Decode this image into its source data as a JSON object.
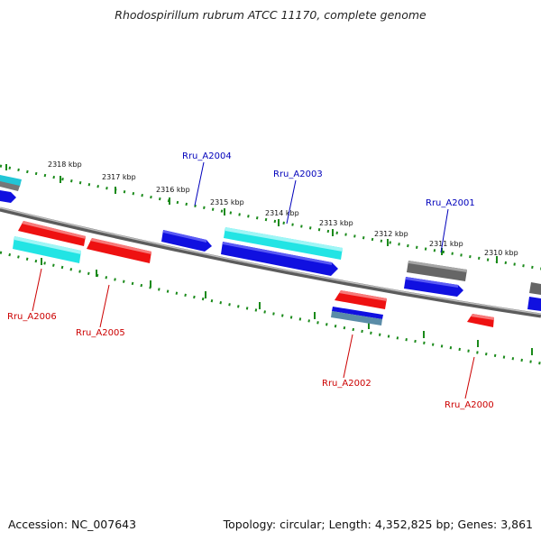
{
  "title": "Rhodospirillum rubrum ATCC 11170, complete genome",
  "footer": {
    "accession": "Accession: NC_007643",
    "summary": "Topology: circular; Length: 4,352,825 bp; Genes: 3,861"
  },
  "colors": {
    "plus_strand_label": "#0000bb",
    "minus_strand_label": "#cc0000",
    "blue": "#1010e0",
    "red": "#ee1111",
    "cyan": "#22e4e4",
    "grey": "#666666",
    "tick": "#1a8a1a",
    "backbone": "#888888"
  },
  "ticks": [
    "2318 kbp",
    "2317 kbp",
    "2316 kbp",
    "2315 kbp",
    "2314 kbp",
    "2313 kbp",
    "2312 kbp",
    "2311 kbp",
    "2310 kbp"
  ],
  "gene_labels_top": [
    "Rru_A2004",
    "Rru_A2003",
    "Rru_A2001"
  ],
  "gene_labels_bottom": [
    "Rru_A2006",
    "Rru_A2005",
    "Rru_A2002",
    "Rru_A2000"
  ]
}
